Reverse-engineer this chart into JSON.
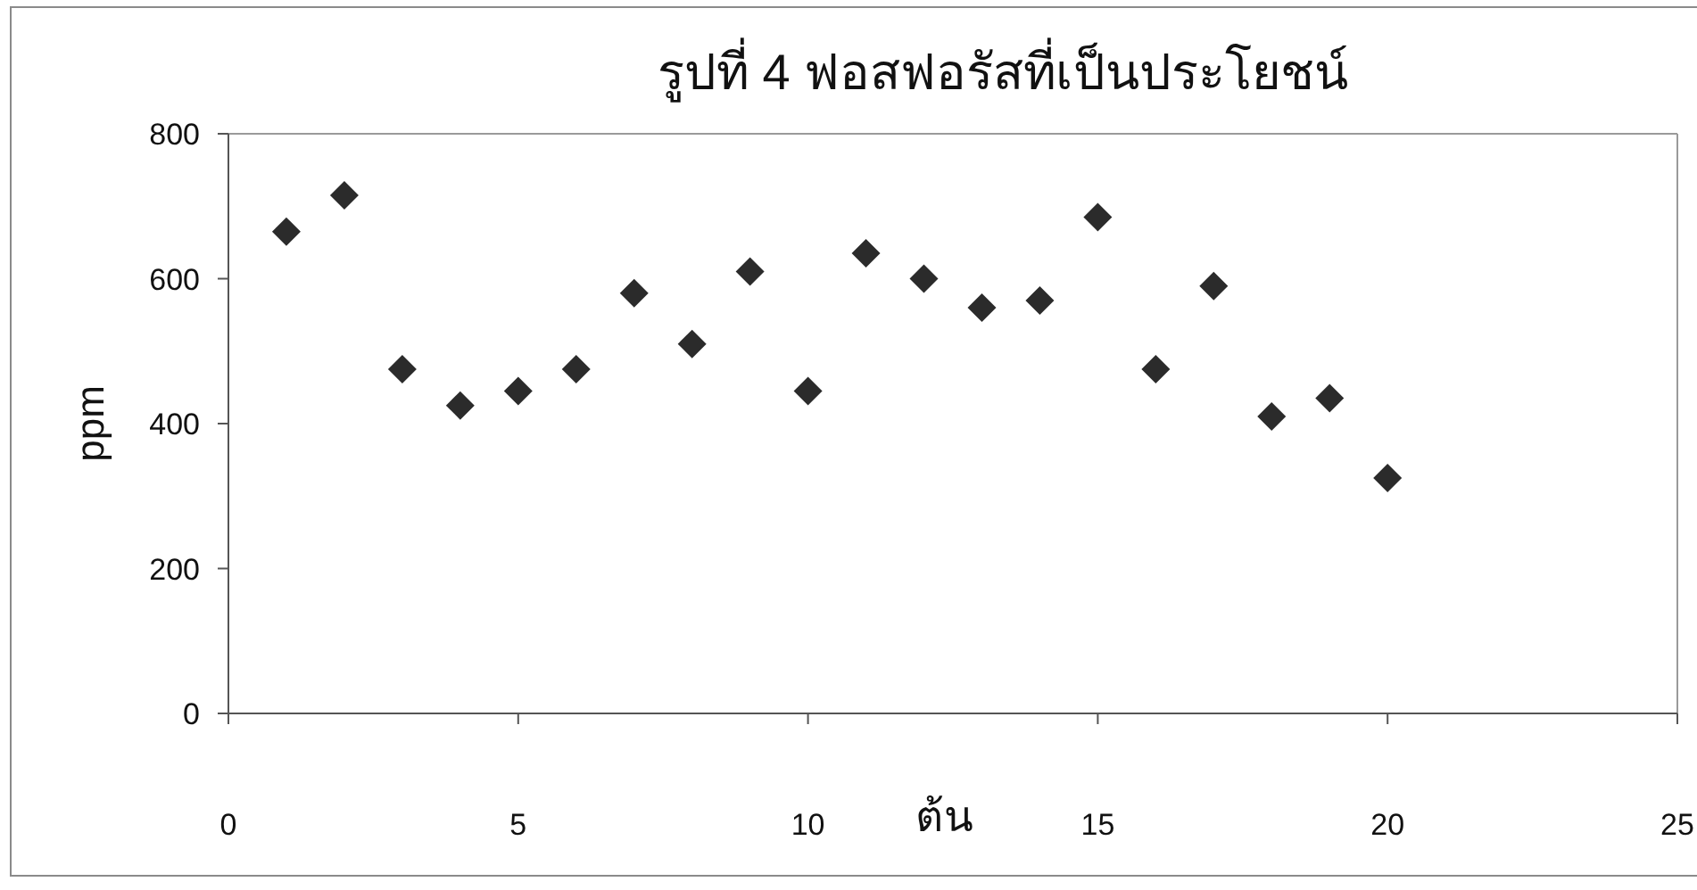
{
  "chart_data": {
    "type": "scatter",
    "title": "รูปที่ 4 ฟอสฟอรัสที่เป็นประโยชน์",
    "xlabel": "ต้น",
    "ylabel": "ppm",
    "x": [
      1,
      2,
      3,
      4,
      5,
      6,
      7,
      8,
      9,
      10,
      11,
      12,
      13,
      14,
      15,
      16,
      17,
      18,
      19,
      20
    ],
    "values": [
      665,
      715,
      475,
      425,
      445,
      475,
      580,
      510,
      610,
      445,
      635,
      600,
      560,
      570,
      685,
      475,
      590,
      410,
      435,
      325
    ],
    "color": "#2b2b2b",
    "marker": "diamond",
    "xlim": [
      0,
      25
    ],
    "ylim": [
      0,
      800
    ],
    "xticks": [
      0,
      5,
      10,
      15,
      20,
      25
    ],
    "yticks": [
      0,
      200,
      400,
      600,
      800
    ]
  }
}
